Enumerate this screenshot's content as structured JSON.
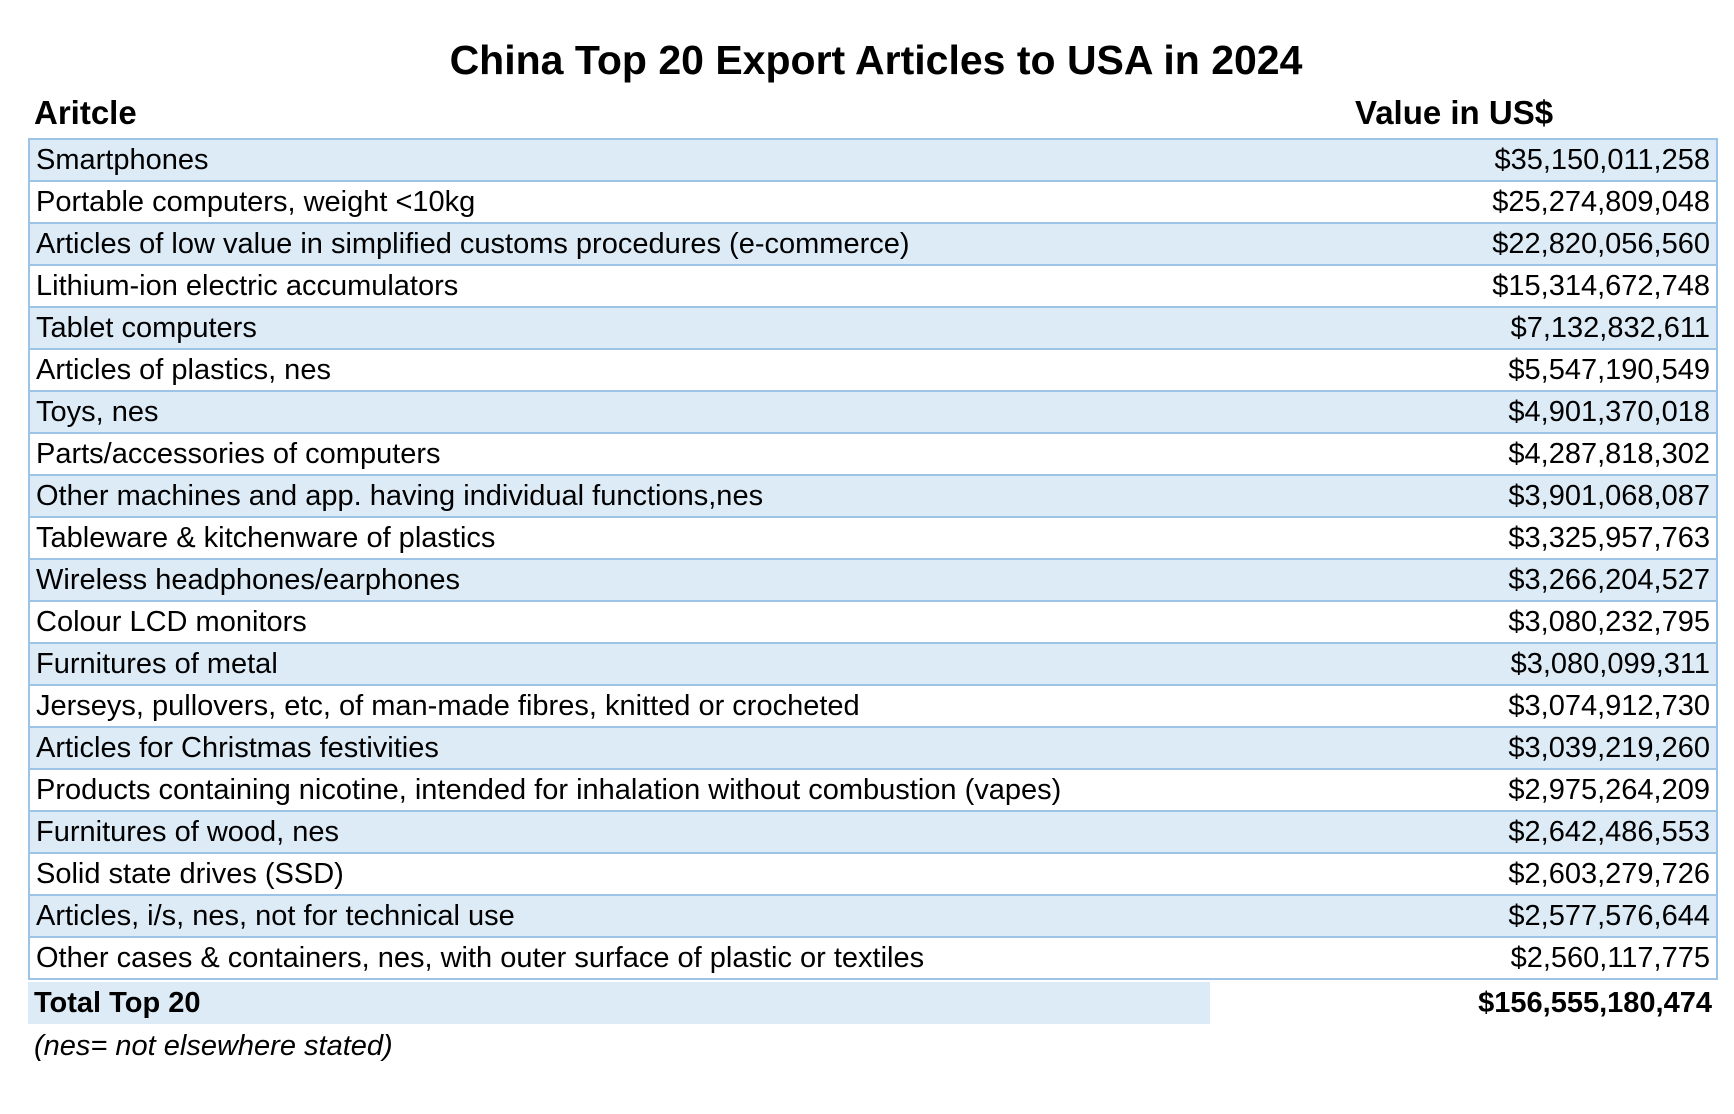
{
  "title": "China Top 20 Export Articles to USA in 2024",
  "columns": {
    "article": "Aritcle",
    "value": "Value in US$"
  },
  "rows": [
    {
      "article": "Smartphones",
      "value": "$35,150,011,258"
    },
    {
      "article": "Portable computers, weight <10kg",
      "value": "$25,274,809,048"
    },
    {
      "article": "Articles of low value in simplified customs procedures (e-commerce)",
      "value": "$22,820,056,560"
    },
    {
      "article": "Lithium-ion electric accumulators",
      "value": "$15,314,672,748"
    },
    {
      "article": "Tablet computers",
      "value": "$7,132,832,611"
    },
    {
      "article": "Articles of plastics, nes",
      "value": "$5,547,190,549"
    },
    {
      "article": "Toys, nes",
      "value": "$4,901,370,018"
    },
    {
      "article": "Parts/accessories of computers",
      "value": "$4,287,818,302"
    },
    {
      "article": "Other machines and app. having individual functions,nes",
      "value": "$3,901,068,087"
    },
    {
      "article": "Tableware & kitchenware of plastics",
      "value": "$3,325,957,763"
    },
    {
      "article": "Wireless headphones/earphones",
      "value": "$3,266,204,527"
    },
    {
      "article": "Colour LCD monitors",
      "value": "$3,080,232,795"
    },
    {
      "article": "Furnitures of metal",
      "value": "$3,080,099,311"
    },
    {
      "article": "Jerseys, pullovers, etc, of man-made fibres, knitted or crocheted",
      "value": "$3,074,912,730"
    },
    {
      "article": "Articles for Christmas festivities",
      "value": "$3,039,219,260"
    },
    {
      "article": "Products containing nicotine, intended for inhalation without combustion (vapes)",
      "value": "$2,975,264,209"
    },
    {
      "article": "Furnitures of wood, nes",
      "value": "$2,642,486,553"
    },
    {
      "article": "Solid state drives (SSD)",
      "value": "$2,603,279,726"
    },
    {
      "article": "Articles, i/s, nes, not for technical use",
      "value": "$2,577,576,644"
    },
    {
      "article": "Other cases & containers, nes, with outer surface of plastic or textiles",
      "value": "$2,560,117,775"
    }
  ],
  "total": {
    "label": "Total Top 20",
    "value": "$156,555,180,474"
  },
  "footnote": "(nes= not elsewhere stated)",
  "colors": {
    "band": "#ddebf7",
    "border": "#9dc3e6"
  }
}
